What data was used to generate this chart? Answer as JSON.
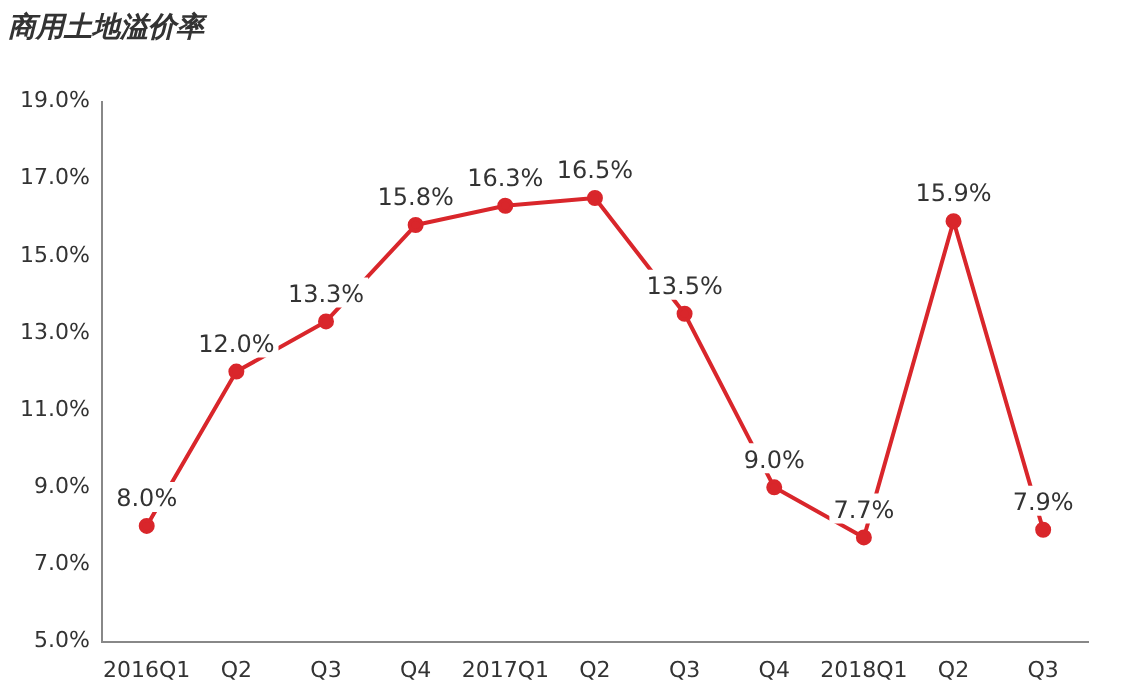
{
  "chart_data": {
    "type": "line",
    "title": "商用土地溢价率",
    "categories": [
      "2016Q1",
      "Q2",
      "Q3",
      "Q4",
      "2017Q1",
      "Q2",
      "Q3",
      "Q4",
      "2018Q1",
      "Q2",
      "Q3"
    ],
    "series": [
      {
        "color": "#d9262b",
        "values": [
          8.0,
          12.0,
          13.3,
          15.8,
          16.3,
          16.5,
          13.5,
          9.0,
          7.7,
          15.9,
          7.9
        ],
        "value_labels": [
          "8.0%",
          "12.0%",
          "13.3%",
          "15.8%",
          "16.3%",
          "16.5%",
          "13.5%",
          "9.0%",
          "7.7%",
          "15.9%",
          "7.9%"
        ]
      }
    ],
    "ylim": [
      5,
      19
    ],
    "yticks": [
      {
        "value": 5,
        "label": "5.0%"
      },
      {
        "value": 7,
        "label": "7.0%"
      },
      {
        "value": 9,
        "label": "9.0%"
      },
      {
        "value": 11,
        "label": "11.0%"
      },
      {
        "value": 13,
        "label": "13.0%"
      },
      {
        "value": 15,
        "label": "15.0%"
      },
      {
        "value": 17,
        "label": "17.0%"
      },
      {
        "value": 19,
        "label": "19.0%"
      }
    ],
    "grid": false,
    "legend": false,
    "marker": "circle",
    "line_style": "solid"
  }
}
